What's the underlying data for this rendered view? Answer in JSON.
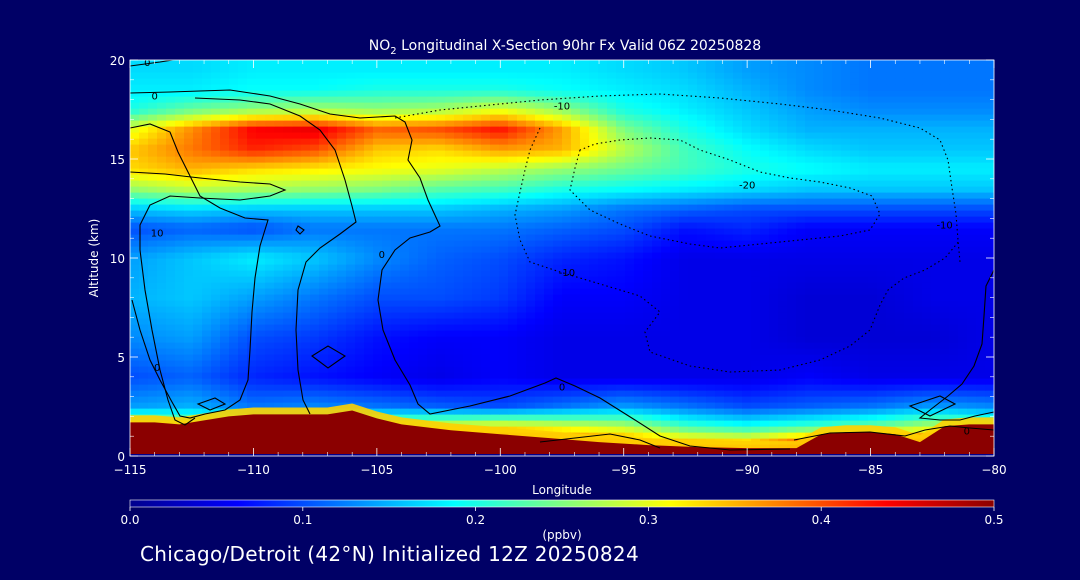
{
  "chart_data": {
    "type": "heatmap",
    "title_prefix": "NO",
    "title_sub": "2",
    "title_rest": " Longitudinal X-Section 90hr  Fx Valid 06Z 20250828",
    "xlabel": "Longitude",
    "ylabel": "Altitude (km)",
    "xlim": [
      -115,
      -80
    ],
    "ylim": [
      0,
      20
    ],
    "x_ticks": [
      -115,
      -110,
      -105,
      -100,
      -95,
      -90,
      -85,
      -80
    ],
    "x_tick_labels": [
      "−115",
      "−110",
      "−105",
      "−100",
      "−95",
      "−90",
      "−85",
      "−80"
    ],
    "y_ticks": [
      0,
      5,
      10,
      15,
      20
    ],
    "y_tick_labels": [
      "0",
      "5",
      "10",
      "15",
      "20"
    ],
    "colorbar": {
      "min": 0.0,
      "max": 0.5,
      "ticks": [
        0.0,
        0.1,
        0.2,
        0.3,
        0.4,
        0.5
      ],
      "tick_labels": [
        "0.0",
        "0.1",
        "0.2",
        "0.3",
        "0.4",
        "0.5"
      ],
      "unit_label": "(ppbv)",
      "colors": [
        "#00008c",
        "#0000ff",
        "#0080ff",
        "#00ffff",
        "#80ff80",
        "#ffff00",
        "#ff8000",
        "#ff0000",
        "#8b0000"
      ]
    },
    "contour_labels": [
      {
        "text": "0",
        "lon": -114.3,
        "alt": 19.9
      },
      {
        "text": "0",
        "lon": -114.0,
        "alt": 18.2
      },
      {
        "text": "-10",
        "lon": -97.5,
        "alt": 17.7
      },
      {
        "text": "-20",
        "lon": -90.0,
        "alt": 13.7
      },
      {
        "text": "-10",
        "lon": -82.0,
        "alt": 11.7
      },
      {
        "text": "-10",
        "lon": -97.3,
        "alt": 9.3
      },
      {
        "text": "10",
        "lon": -113.9,
        "alt": 11.3
      },
      {
        "text": "0",
        "lon": -104.8,
        "alt": 10.2
      },
      {
        "text": "0",
        "lon": -113.9,
        "alt": 4.5
      },
      {
        "text": "0",
        "lon": -97.5,
        "alt": 3.5
      },
      {
        "text": "0",
        "lon": -81.1,
        "alt": 1.3
      }
    ],
    "columns_lon": [
      -115,
      -112.5,
      -110,
      -107.5,
      -105,
      -102.5,
      -100,
      -97.5,
      -95,
      -92.5,
      -90,
      -87.5,
      -85,
      -82.5,
      -80
    ],
    "levels_alt": [
      0.5,
      1.5,
      2.5,
      4,
      6,
      8,
      10,
      11.5,
      12.5,
      13.5,
      14.5,
      15.5,
      16.5,
      17.5,
      18.5,
      19.5
    ],
    "values": [
      [
        0.5,
        0.5,
        0.5,
        0.5,
        0.48,
        0.46,
        0.44,
        0.43,
        0.4,
        0.38,
        0.37,
        0.45,
        0.46,
        0.45,
        0.5
      ],
      [
        0.3,
        0.28,
        0.26,
        0.26,
        0.28,
        0.3,
        0.32,
        0.3,
        0.28,
        0.22,
        0.2,
        0.22,
        0.24,
        0.28,
        0.24
      ],
      [
        0.14,
        0.15,
        0.12,
        0.13,
        0.12,
        0.11,
        0.1,
        0.12,
        0.14,
        0.12,
        0.1,
        0.11,
        0.12,
        0.14,
        0.13
      ],
      [
        0.1,
        0.11,
        0.08,
        0.07,
        0.06,
        0.05,
        0.06,
        0.05,
        0.05,
        0.05,
        0.05,
        0.06,
        0.05,
        0.05,
        0.05
      ],
      [
        0.13,
        0.14,
        0.1,
        0.09,
        0.07,
        0.06,
        0.06,
        0.05,
        0.05,
        0.05,
        0.05,
        0.04,
        0.04,
        0.04,
        0.05
      ],
      [
        0.15,
        0.16,
        0.14,
        0.12,
        0.1,
        0.1,
        0.09,
        0.06,
        0.06,
        0.05,
        0.05,
        0.04,
        0.04,
        0.05,
        0.05
      ],
      [
        0.14,
        0.16,
        0.18,
        0.16,
        0.13,
        0.11,
        0.1,
        0.08,
        0.07,
        0.05,
        0.05,
        0.05,
        0.05,
        0.05,
        0.05
      ],
      [
        0.1,
        0.11,
        0.1,
        0.12,
        0.12,
        0.12,
        0.12,
        0.11,
        0.1,
        0.07,
        0.08,
        0.06,
        0.06,
        0.06,
        0.06
      ],
      [
        0.16,
        0.17,
        0.16,
        0.16,
        0.16,
        0.16,
        0.15,
        0.14,
        0.12,
        0.11,
        0.1,
        0.1,
        0.1,
        0.1,
        0.1
      ],
      [
        0.26,
        0.28,
        0.27,
        0.26,
        0.25,
        0.23,
        0.22,
        0.2,
        0.19,
        0.18,
        0.17,
        0.16,
        0.16,
        0.16,
        0.16
      ],
      [
        0.33,
        0.35,
        0.33,
        0.32,
        0.31,
        0.3,
        0.28,
        0.26,
        0.24,
        0.22,
        0.2,
        0.19,
        0.18,
        0.18,
        0.18
      ],
      [
        0.34,
        0.38,
        0.42,
        0.4,
        0.34,
        0.33,
        0.36,
        0.35,
        0.28,
        0.22,
        0.19,
        0.17,
        0.16,
        0.16,
        0.16
      ],
      [
        0.3,
        0.37,
        0.44,
        0.45,
        0.39,
        0.4,
        0.43,
        0.36,
        0.25,
        0.2,
        0.17,
        0.15,
        0.15,
        0.15,
        0.15
      ],
      [
        0.2,
        0.24,
        0.26,
        0.27,
        0.26,
        0.27,
        0.3,
        0.26,
        0.2,
        0.18,
        0.16,
        0.14,
        0.13,
        0.13,
        0.13
      ],
      [
        0.18,
        0.18,
        0.19,
        0.19,
        0.2,
        0.2,
        0.2,
        0.19,
        0.18,
        0.17,
        0.15,
        0.13,
        0.12,
        0.12,
        0.12
      ],
      [
        0.17,
        0.17,
        0.18,
        0.18,
        0.18,
        0.18,
        0.18,
        0.18,
        0.17,
        0.16,
        0.14,
        0.13,
        0.12,
        0.12,
        0.12
      ]
    ],
    "terrain_lon": [
      -115,
      -114,
      -113,
      -112,
      -111,
      -110,
      -109,
      -108,
      -107,
      -106,
      -105,
      -104,
      -102,
      -100,
      -98,
      -96,
      -94,
      -92,
      -90,
      -88,
      -87,
      -86,
      -85,
      -84,
      -83,
      -82,
      -81,
      -80
    ],
    "terrain_alt": [
      1.7,
      1.7,
      1.6,
      1.8,
      2.0,
      2.1,
      2.1,
      2.1,
      2.1,
      2.3,
      1.9,
      1.6,
      1.3,
      1.1,
      0.9,
      0.7,
      0.55,
      0.45,
      0.4,
      0.4,
      1.1,
      1.2,
      1.2,
      1.1,
      0.7,
      1.5,
      1.6,
      1.6
    ]
  },
  "footer": "Chicago/Detroit (42°N) Initialized 12Z 20250824",
  "colors": {
    "background": "#000066",
    "foreground": "#ffffff",
    "contour": "#000000"
  }
}
